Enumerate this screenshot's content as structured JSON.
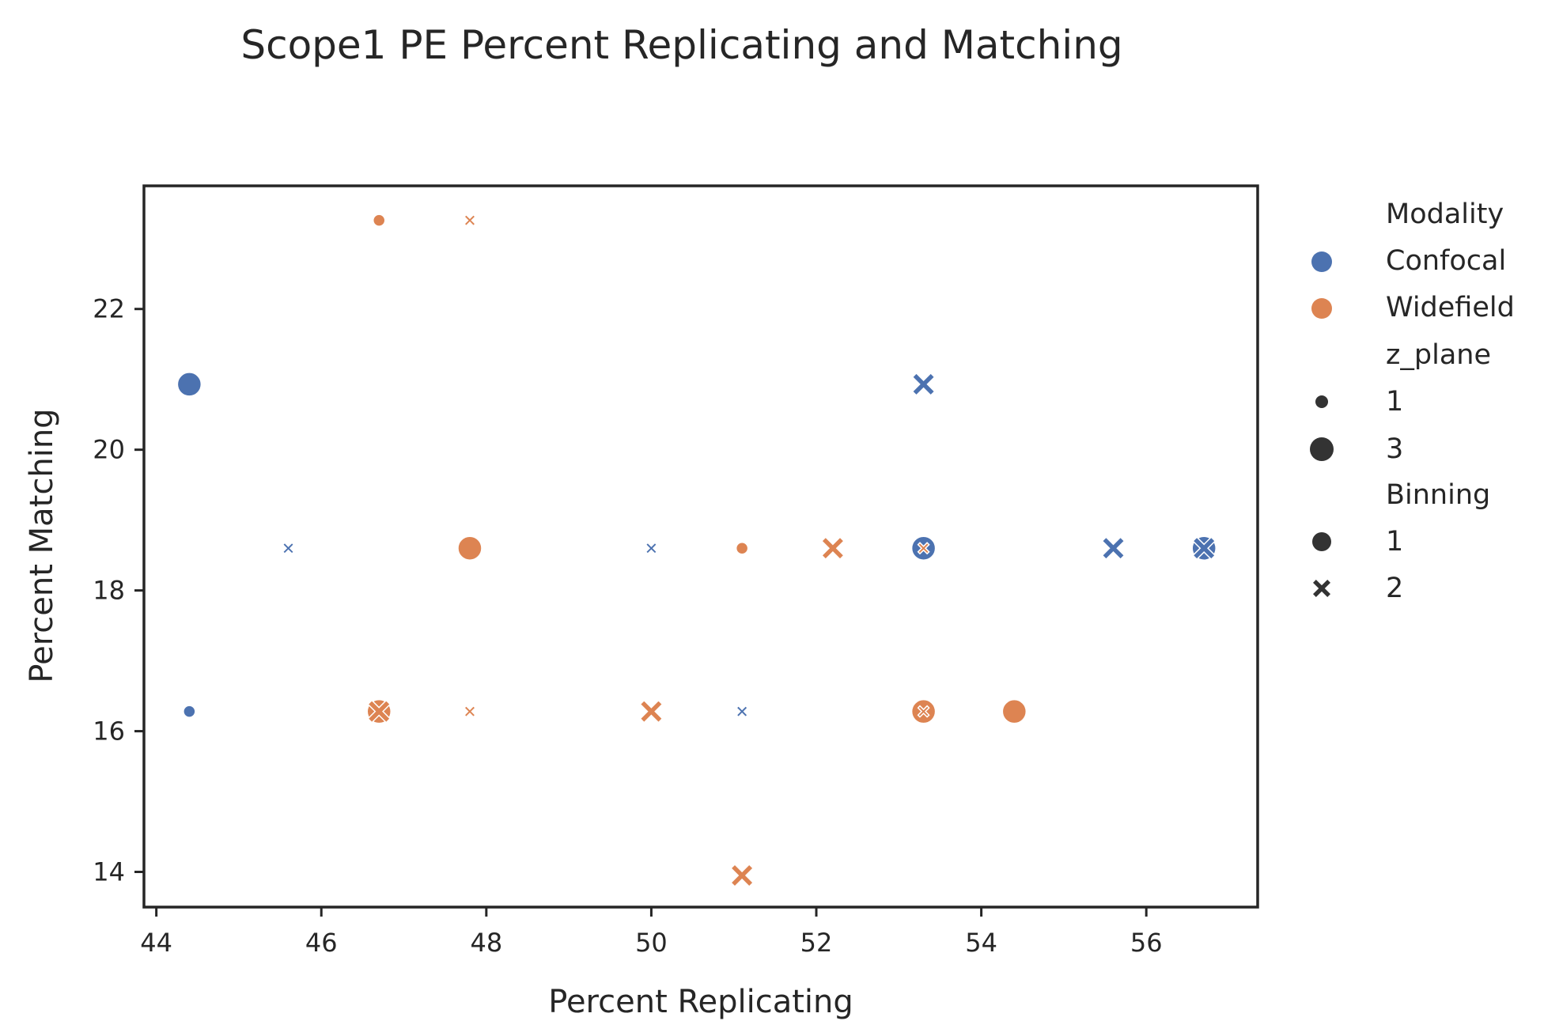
{
  "chart_data": {
    "type": "scatter",
    "title": "Scope1 PE Percent Replicating and Matching",
    "xlabel": "Percent Replicating",
    "ylabel": "Percent Matching",
    "xlim": [
      43.85,
      57.35
    ],
    "ylim": [
      13.5,
      23.75
    ],
    "xticks": [
      "44",
      "46",
      "48",
      "50",
      "52",
      "54",
      "56"
    ],
    "yticks": [
      "14",
      "16",
      "18",
      "20",
      "22"
    ],
    "grid": false,
    "legend_position": "outside-right",
    "colors": {
      "Confocal": "#4c72b0",
      "Widefield": "#dd8452",
      "neutral": "#333333"
    },
    "legend": {
      "hue_title": "Modality",
      "hue_entries": [
        "Confocal",
        "Widefield"
      ],
      "size_title": "z_plane",
      "size_entries": [
        "1",
        "3"
      ],
      "style_title": "Binning",
      "style_entries": [
        "1",
        "2"
      ]
    },
    "points": [
      {
        "x": 44.4,
        "y": 20.93,
        "modality": "Confocal",
        "z_plane": 3,
        "binning": 1
      },
      {
        "x": 44.4,
        "y": 16.28,
        "modality": "Confocal",
        "z_plane": 1,
        "binning": 1
      },
      {
        "x": 45.6,
        "y": 18.6,
        "modality": "Confocal",
        "z_plane": 1,
        "binning": 2
      },
      {
        "x": 50.0,
        "y": 18.6,
        "modality": "Confocal",
        "z_plane": 1,
        "binning": 2
      },
      {
        "x": 51.1,
        "y": 16.28,
        "modality": "Confocal",
        "z_plane": 1,
        "binning": 2
      },
      {
        "x": 53.3,
        "y": 20.93,
        "modality": "Confocal",
        "z_plane": 3,
        "binning": 2
      },
      {
        "x": 53.3,
        "y": 18.6,
        "modality": "Confocal",
        "z_plane": 3,
        "binning": 1
      },
      {
        "x": 55.6,
        "y": 18.6,
        "modality": "Confocal",
        "z_plane": 3,
        "binning": 2
      },
      {
        "x": 56.7,
        "y": 18.6,
        "modality": "Confocal",
        "z_plane": 3,
        "binning": 1
      },
      {
        "x": 56.7,
        "y": 18.6,
        "modality": "Confocal",
        "z_plane": 3,
        "binning": 2
      },
      {
        "x": 46.7,
        "y": 23.26,
        "modality": "Widefield",
        "z_plane": 1,
        "binning": 1
      },
      {
        "x": 47.8,
        "y": 23.26,
        "modality": "Widefield",
        "z_plane": 1,
        "binning": 2
      },
      {
        "x": 47.8,
        "y": 18.6,
        "modality": "Widefield",
        "z_plane": 3,
        "binning": 1
      },
      {
        "x": 46.7,
        "y": 16.28,
        "modality": "Widefield",
        "z_plane": 3,
        "binning": 1
      },
      {
        "x": 46.7,
        "y": 16.28,
        "modality": "Widefield",
        "z_plane": 3,
        "binning": 2
      },
      {
        "x": 47.8,
        "y": 16.28,
        "modality": "Widefield",
        "z_plane": 1,
        "binning": 2
      },
      {
        "x": 50.0,
        "y": 16.28,
        "modality": "Widefield",
        "z_plane": 3,
        "binning": 2
      },
      {
        "x": 51.1,
        "y": 18.6,
        "modality": "Widefield",
        "z_plane": 1,
        "binning": 1
      },
      {
        "x": 52.2,
        "y": 18.6,
        "modality": "Widefield",
        "z_plane": 3,
        "binning": 2
      },
      {
        "x": 53.3,
        "y": 18.6,
        "modality": "Widefield",
        "z_plane": 1,
        "binning": 2
      },
      {
        "x": 53.3,
        "y": 16.28,
        "modality": "Widefield",
        "z_plane": 3,
        "binning": 1
      },
      {
        "x": 53.3,
        "y": 16.28,
        "modality": "Widefield",
        "z_plane": 1,
        "binning": 2
      },
      {
        "x": 54.4,
        "y": 16.28,
        "modality": "Widefield",
        "z_plane": 3,
        "binning": 1
      },
      {
        "x": 51.1,
        "y": 13.95,
        "modality": "Widefield",
        "z_plane": 3,
        "binning": 2
      }
    ]
  }
}
